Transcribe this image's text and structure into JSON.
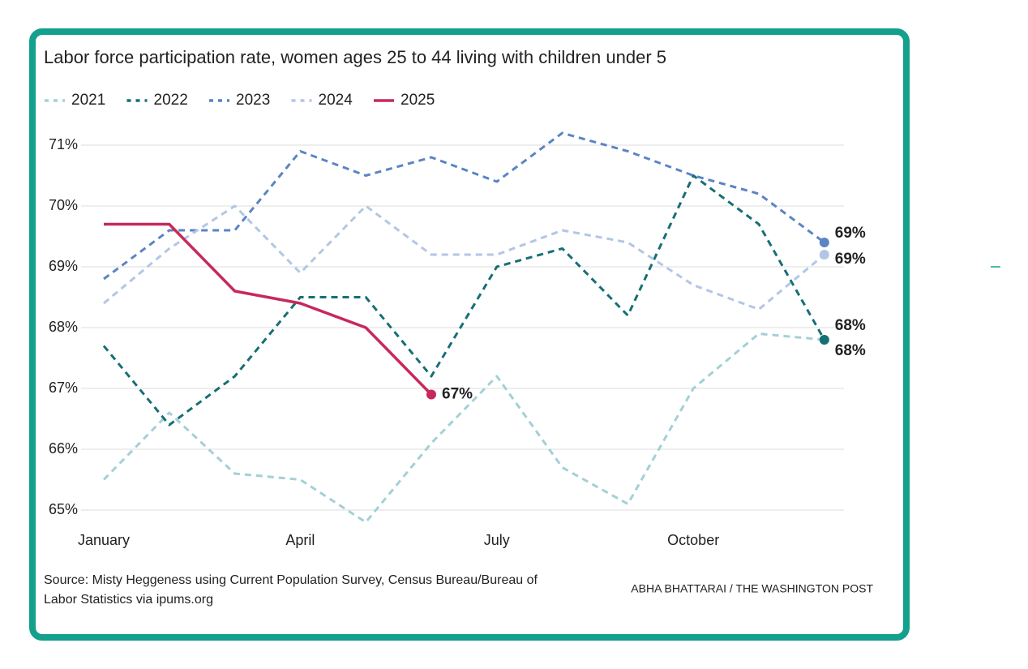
{
  "chart_data": {
    "type": "line",
    "title": "Labor force participation rate, women ages 25 to 44 living with children under 5",
    "categories": [
      "January",
      null,
      null,
      "April",
      null,
      null,
      "July",
      null,
      null,
      "October",
      null,
      null
    ],
    "series": [
      {
        "name": "2021",
        "color": "#a3d0d6",
        "label_color": "#5f8488",
        "values": [
          65.5,
          66.6,
          65.6,
          65.5,
          64.8,
          66.1,
          67.2,
          65.7,
          65.1,
          67.0,
          67.9,
          67.8
        ],
        "value_labels": [
          null,
          null,
          null,
          null,
          null,
          null,
          null,
          null,
          null,
          null,
          null,
          "68%"
        ]
      },
      {
        "name": "2022",
        "color": "#166f75",
        "label_color": "#166f75",
        "values": [
          67.7,
          66.4,
          67.2,
          68.5,
          68.5,
          67.2,
          69.0,
          69.3,
          68.2,
          70.5,
          69.7,
          67.8
        ],
        "value_labels": [
          null,
          null,
          null,
          null,
          null,
          null,
          null,
          null,
          null,
          null,
          null,
          "68%"
        ]
      },
      {
        "name": "2023",
        "color": "#5b84c4",
        "label_color": "#5b84c4",
        "values": [
          68.8,
          69.6,
          69.6,
          70.9,
          70.5,
          70.8,
          70.4,
          71.2,
          70.9,
          70.5,
          70.2,
          69.4
        ],
        "value_labels": [
          null,
          null,
          null,
          null,
          null,
          null,
          null,
          null,
          null,
          null,
          null,
          "69%"
        ]
      },
      {
        "name": "2024",
        "color": "#b3c6e6",
        "label_color": "#6d80a6",
        "values": [
          68.4,
          69.3,
          70.0,
          68.9,
          70.0,
          69.2,
          69.2,
          69.6,
          69.4,
          68.7,
          68.3,
          69.2
        ],
        "value_labels": [
          null,
          null,
          null,
          null,
          null,
          null,
          null,
          null,
          null,
          null,
          null,
          "69%"
        ]
      },
      {
        "name": "2025",
        "color": "#c7295a",
        "label_color": "#c7295a",
        "solid": true,
        "values": [
          69.7,
          69.7,
          68.6,
          68.4,
          68.0,
          66.9,
          null,
          null,
          null,
          null,
          null,
          null
        ],
        "value_labels": [
          null,
          null,
          null,
          null,
          null,
          "67%",
          null,
          null,
          null,
          null,
          null,
          null
        ]
      }
    ],
    "ylim": [
      65,
      71
    ],
    "yticks": [
      {
        "value": 65,
        "label": "65%"
      },
      {
        "value": 66,
        "label": "66%"
      },
      {
        "value": 67,
        "label": "67%"
      },
      {
        "value": 68,
        "label": "68%"
      },
      {
        "value": 69,
        "label": "69%"
      },
      {
        "value": 70,
        "label": "70%"
      },
      {
        "value": 71,
        "label": "71%"
      }
    ],
    "grid": true,
    "legend": "top-left",
    "source": [
      "Source: Misty Heggeness using Current Population Survey, Census Bureau/Bureau of",
      "Labor Statistics via ipums.org"
    ],
    "credit": "ABHA BHATTARAI / THE WASHINGTON POST"
  }
}
